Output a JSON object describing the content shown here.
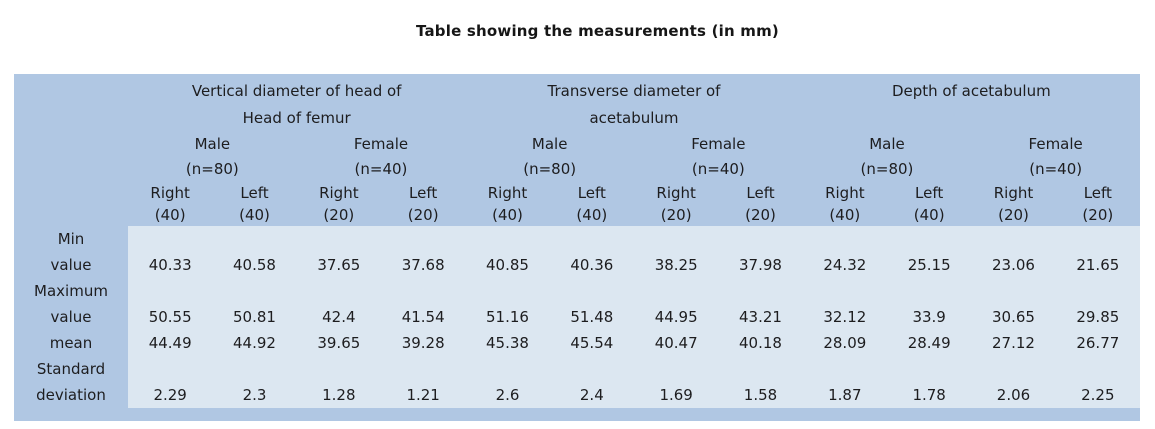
{
  "title": "Table showing the measurements (in mm)",
  "colors": {
    "header_bg": "#b0c7e3",
    "body_bg": "#dce7f1",
    "text": "#1d1d1f"
  },
  "table": {
    "groups": [
      {
        "line1": "Vertical diameter of head of",
        "line2": "Head of femur"
      },
      {
        "line1": "Transverse diameter of",
        "line2": "acetabulum"
      },
      {
        "line1": "Depth of acetabulum",
        "line2": ""
      }
    ],
    "sex_headers": [
      {
        "label": "Male",
        "n": "(n=80)"
      },
      {
        "label": "Female",
        "n": "(n=40)"
      },
      {
        "label": "Male",
        "n": "(n=80)"
      },
      {
        "label": "Female",
        "n": "(n=40)"
      },
      {
        "label": "Male",
        "n": "(n=80)"
      },
      {
        "label": "Female",
        "n": "(n=40)"
      }
    ],
    "side_headers": [
      {
        "side": "Right",
        "count": "(40)"
      },
      {
        "side": "Left",
        "count": "(40)"
      },
      {
        "side": "Right",
        "count": "(20)"
      },
      {
        "side": "Left",
        "count": "(20)"
      },
      {
        "side": "Right",
        "count": "(40)"
      },
      {
        "side": "Left",
        "count": "(40)"
      },
      {
        "side": "Right",
        "count": "(20)"
      },
      {
        "side": "Left",
        "count": "(20)"
      },
      {
        "side": "Right",
        "count": "(40)"
      },
      {
        "side": "Left",
        "count": "(40)"
      },
      {
        "side": "Right",
        "count": "(20)"
      },
      {
        "side": "Left",
        "count": "(20)"
      }
    ],
    "rows": [
      {
        "label_line1": "Min",
        "label_line2": "value",
        "values": [
          "40.33",
          "40.58",
          "37.65",
          "37.68",
          "40.85",
          "40.36",
          "38.25",
          "37.98",
          "24.32",
          "25.15",
          "23.06",
          "21.65"
        ]
      },
      {
        "label_line1": "Maximum",
        "label_line2": "value",
        "values": [
          "50.55",
          "50.81",
          "42.4",
          "41.54",
          "51.16",
          "51.48",
          "44.95",
          "43.21",
          "32.12",
          "33.9",
          "30.65",
          "29.85"
        ]
      },
      {
        "label_line1": "",
        "label_line2": "mean",
        "values": [
          "44.49",
          "44.92",
          "39.65",
          "39.28",
          "45.38",
          "45.54",
          "40.47",
          "40.18",
          "28.09",
          "28.49",
          "27.12",
          "26.77"
        ]
      },
      {
        "label_line1": "Standard",
        "label_line2": "deviation",
        "values": [
          "2.29",
          "2.3",
          "1.28",
          "1.21",
          "2.6",
          "2.4",
          "1.69",
          "1.58",
          "1.87",
          "1.78",
          "2.06",
          "2.25"
        ]
      }
    ]
  },
  "chart_data": {
    "type": "table",
    "title": "Table showing the measurements (in mm)",
    "column_groups": [
      "Vertical diameter of head of Head of femur",
      "Transverse diameter of acetabulum",
      "Depth of acetabulum"
    ],
    "columns": [
      "Vertical diameter | Male (n=80) | Right (40)",
      "Vertical diameter | Male (n=80) | Left (40)",
      "Vertical diameter | Female (n=40) | Right (20)",
      "Vertical diameter | Female (n=40) | Left (20)",
      "Transverse diameter | Male (n=80) | Right (40)",
      "Transverse diameter | Male (n=80) | Left (40)",
      "Transverse diameter | Female (n=40) | Right (20)",
      "Transverse diameter | Female (n=40) | Left (20)",
      "Depth of acetabulum | Male (n=80) | Right (40)",
      "Depth of acetabulum | Male (n=80) | Left (40)",
      "Depth of acetabulum | Female (n=40) | Right (20)",
      "Depth of acetabulum | Female (n=40) | Left (20)"
    ],
    "rows": [
      {
        "label": "Min value",
        "values": [
          40.33,
          40.58,
          37.65,
          37.68,
          40.85,
          40.36,
          38.25,
          37.98,
          24.32,
          25.15,
          23.06,
          21.65
        ]
      },
      {
        "label": "Maximum value",
        "values": [
          50.55,
          50.81,
          42.4,
          41.54,
          51.16,
          51.48,
          44.95,
          43.21,
          32.12,
          33.9,
          30.65,
          29.85
        ]
      },
      {
        "label": "mean",
        "values": [
          44.49,
          44.92,
          39.65,
          39.28,
          45.38,
          45.54,
          40.47,
          40.18,
          28.09,
          28.49,
          27.12,
          26.77
        ]
      },
      {
        "label": "Standard deviation",
        "values": [
          2.29,
          2.3,
          1.28,
          1.21,
          2.6,
          2.4,
          1.69,
          1.58,
          1.87,
          1.78,
          2.06,
          2.25
        ]
      }
    ]
  }
}
